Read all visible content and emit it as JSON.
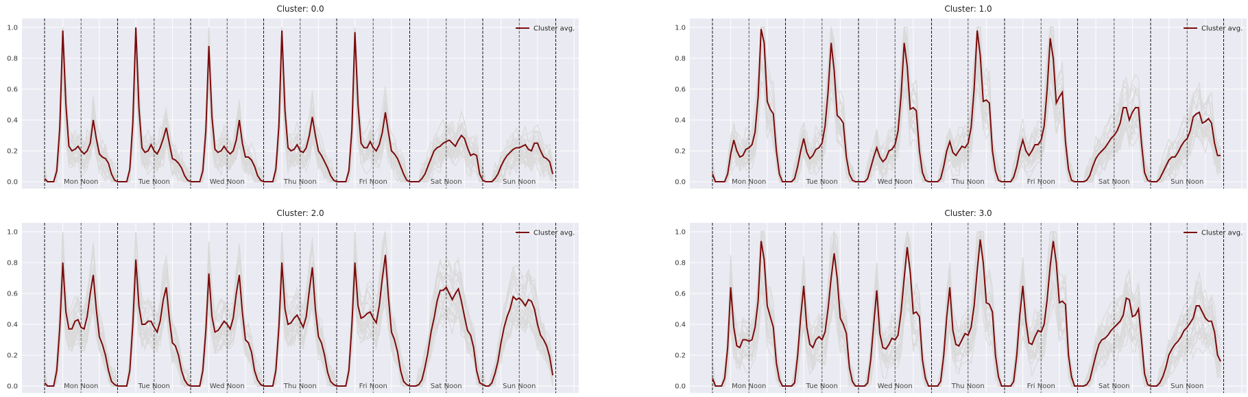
{
  "figure": {
    "grid": true,
    "background_color": "#eaeaf2",
    "avg_color": "#7b0a0a",
    "member_color": "#d9d9d9",
    "legend_placement": "top-right"
  },
  "chart_data": [
    {
      "type": "line",
      "title": "Cluster: 0.0",
      "xlabel": "",
      "ylabel": "",
      "ylim": [
        0,
        1.0
      ],
      "yticks": [
        0.0,
        0.2,
        0.4,
        0.6,
        0.8,
        1.0
      ],
      "ytick_labels": [
        "0.0",
        "0.2",
        "0.4",
        "0.6",
        "0.8",
        "1.0"
      ],
      "day_labels": [
        "Mon Noon",
        "Tue Noon",
        "Wed Noon",
        "Thu Noon",
        "Fri Noon",
        "Sat Noon",
        "Sun Noon"
      ],
      "legend": [
        "Cluster avg."
      ],
      "series": [
        {
          "name": "Cluster avg.",
          "values": [
            0.02,
            0,
            0,
            0,
            0.07,
            0.35,
            0.98,
            0.5,
            0.23,
            0.2,
            0.21,
            0.23,
            0.2,
            0.18,
            0.2,
            0.25,
            0.4,
            0.28,
            0.18,
            0.16,
            0.15,
            0.12,
            0.05,
            0.01,
            0,
            0,
            0,
            0,
            0.08,
            0.38,
            1.0,
            0.48,
            0.22,
            0.19,
            0.2,
            0.24,
            0.2,
            0.18,
            0.22,
            0.28,
            0.35,
            0.25,
            0.15,
            0.14,
            0.12,
            0.09,
            0.04,
            0.01,
            0,
            0,
            0,
            0,
            0.07,
            0.33,
            0.88,
            0.42,
            0.21,
            0.19,
            0.2,
            0.23,
            0.2,
            0.18,
            0.2,
            0.27,
            0.4,
            0.25,
            0.16,
            0.16,
            0.14,
            0.1,
            0.04,
            0.01,
            0,
            0,
            0,
            0,
            0.08,
            0.36,
            0.98,
            0.46,
            0.22,
            0.2,
            0.21,
            0.24,
            0.2,
            0.19,
            0.22,
            0.3,
            0.42,
            0.3,
            0.2,
            0.17,
            0.13,
            0.09,
            0.04,
            0.01,
            0,
            0,
            0,
            0,
            0.07,
            0.34,
            0.97,
            0.5,
            0.25,
            0.22,
            0.22,
            0.26,
            0.22,
            0.2,
            0.24,
            0.32,
            0.45,
            0.32,
            0.2,
            0.18,
            0.15,
            0.1,
            0.05,
            0.01,
            0,
            0,
            0,
            0,
            0.02,
            0.05,
            0.1,
            0.15,
            0.2,
            0.22,
            0.23,
            0.25,
            0.26,
            0.27,
            0.25,
            0.23,
            0.27,
            0.3,
            0.28,
            0.22,
            0.17,
            0.18,
            0.17,
            0.05,
            0.01,
            0,
            0,
            0,
            0.02,
            0.05,
            0.1,
            0.14,
            0.17,
            0.19,
            0.21,
            0.22,
            0.22,
            0.23,
            0.24,
            0.21,
            0.2,
            0.25,
            0.25,
            0.2,
            0.16,
            0.15,
            0.13,
            0.05
          ]
        }
      ]
    },
    {
      "type": "line",
      "title": "Cluster: 1.0",
      "xlabel": "",
      "ylabel": "",
      "ylim": [
        0,
        1.0
      ],
      "yticks": [
        0.0,
        0.2,
        0.4,
        0.6,
        0.8,
        1.0
      ],
      "ytick_labels": [
        "0.0",
        "0.2",
        "0.4",
        "0.6",
        "0.8",
        "1.0"
      ],
      "day_labels": [
        "Mon Noon",
        "Tue Noon",
        "Wed Noon",
        "Thu Noon",
        "Fri Noon",
        "Sat Noon",
        "Sun Noon"
      ],
      "legend": [
        "Cluster avg."
      ],
      "series": [
        {
          "name": "Cluster avg.",
          "values": [
            0.05,
            0,
            0,
            0,
            0,
            0.05,
            0.18,
            0.27,
            0.2,
            0.16,
            0.17,
            0.21,
            0.22,
            0.24,
            0.32,
            0.55,
            0.99,
            0.9,
            0.52,
            0.47,
            0.44,
            0.2,
            0.05,
            0,
            0,
            0,
            0,
            0.02,
            0.1,
            0.2,
            0.28,
            0.19,
            0.15,
            0.17,
            0.21,
            0.22,
            0.25,
            0.36,
            0.58,
            0.9,
            0.72,
            0.43,
            0.41,
            0.38,
            0.16,
            0.05,
            0.01,
            0,
            0,
            0,
            0,
            0.02,
            0.09,
            0.16,
            0.22,
            0.16,
            0.13,
            0.15,
            0.2,
            0.21,
            0.24,
            0.33,
            0.56,
            0.9,
            0.75,
            0.47,
            0.48,
            0.46,
            0.2,
            0.06,
            0.01,
            0,
            0,
            0,
            0,
            0.02,
            0.1,
            0.2,
            0.26,
            0.19,
            0.17,
            0.2,
            0.23,
            0.22,
            0.25,
            0.35,
            0.6,
            0.98,
            0.82,
            0.52,
            0.53,
            0.51,
            0.2,
            0.07,
            0.01,
            0,
            0,
            0,
            0,
            0.03,
            0.1,
            0.2,
            0.27,
            0.2,
            0.17,
            0.2,
            0.24,
            0.24,
            0.27,
            0.36,
            0.6,
            0.93,
            0.8,
            0.51,
            0.55,
            0.58,
            0.26,
            0.08,
            0.01,
            0,
            0,
            0,
            0,
            0.01,
            0.04,
            0.1,
            0.15,
            0.18,
            0.2,
            0.22,
            0.25,
            0.28,
            0.3,
            0.33,
            0.38,
            0.48,
            0.48,
            0.4,
            0.45,
            0.48,
            0.48,
            0.25,
            0.06,
            0.01,
            0,
            0,
            0,
            0.02,
            0.06,
            0.1,
            0.14,
            0.16,
            0.16,
            0.19,
            0.23,
            0.26,
            0.28,
            0.33,
            0.42,
            0.44,
            0.45,
            0.38,
            0.39,
            0.41,
            0.38,
            0.25,
            0.17,
            0.17
          ]
        }
      ]
    },
    {
      "type": "line",
      "title": "Cluster: 2.0",
      "xlabel": "",
      "ylabel": "",
      "ylim": [
        0,
        1.0
      ],
      "yticks": [
        0.0,
        0.2,
        0.4,
        0.6,
        0.8,
        1.0
      ],
      "ytick_labels": [
        "0.0",
        "0.2",
        "0.4",
        "0.6",
        "0.8",
        "1.0"
      ],
      "day_labels": [
        "Mon Noon",
        "Tue Noon",
        "Wed Noon",
        "Thu Noon",
        "Fri Noon",
        "Sat Noon",
        "Sun Noon"
      ],
      "legend": [
        "Cluster avg."
      ],
      "series": [
        {
          "name": "Cluster avg.",
          "values": [
            0.02,
            0,
            0,
            0,
            0.1,
            0.38,
            0.8,
            0.48,
            0.37,
            0.37,
            0.42,
            0.43,
            0.38,
            0.37,
            0.45,
            0.6,
            0.72,
            0.5,
            0.32,
            0.27,
            0.2,
            0.1,
            0.03,
            0.01,
            0,
            0,
            0,
            0,
            0.1,
            0.4,
            0.82,
            0.52,
            0.4,
            0.4,
            0.42,
            0.42,
            0.38,
            0.35,
            0.42,
            0.56,
            0.64,
            0.44,
            0.28,
            0.26,
            0.2,
            0.1,
            0.04,
            0.01,
            0,
            0,
            0,
            0,
            0.1,
            0.36,
            0.73,
            0.45,
            0.35,
            0.36,
            0.39,
            0.42,
            0.4,
            0.37,
            0.44,
            0.6,
            0.72,
            0.48,
            0.3,
            0.28,
            0.22,
            0.1,
            0.04,
            0.01,
            0,
            0,
            0,
            0,
            0.1,
            0.38,
            0.8,
            0.5,
            0.4,
            0.41,
            0.44,
            0.46,
            0.42,
            0.38,
            0.45,
            0.62,
            0.77,
            0.5,
            0.32,
            0.28,
            0.2,
            0.09,
            0.03,
            0.01,
            0,
            0,
            0,
            0,
            0.1,
            0.4,
            0.8,
            0.52,
            0.44,
            0.45,
            0.47,
            0.48,
            0.44,
            0.41,
            0.52,
            0.7,
            0.85,
            0.58,
            0.35,
            0.3,
            0.22,
            0.1,
            0.03,
            0.01,
            0,
            0,
            0,
            0.01,
            0.04,
            0.12,
            0.22,
            0.35,
            0.44,
            0.55,
            0.62,
            0.62,
            0.64,
            0.6,
            0.56,
            0.6,
            0.63,
            0.55,
            0.45,
            0.36,
            0.33,
            0.25,
            0.1,
            0.02,
            0.01,
            0,
            0,
            0.02,
            0.08,
            0.16,
            0.28,
            0.38,
            0.45,
            0.5,
            0.58,
            0.56,
            0.57,
            0.55,
            0.52,
            0.56,
            0.55,
            0.5,
            0.4,
            0.33,
            0.3,
            0.26,
            0.19,
            0.07
          ]
        }
      ]
    },
    {
      "type": "line",
      "title": "Cluster: 3.0",
      "xlabel": "",
      "ylabel": "",
      "ylim": [
        0,
        1.0
      ],
      "yticks": [
        0.0,
        0.2,
        0.4,
        0.6,
        0.8,
        1.0
      ],
      "ytick_labels": [
        "0.0",
        "0.2",
        "0.4",
        "0.6",
        "0.8",
        "1.0"
      ],
      "day_labels": [
        "Mon Noon",
        "Tue Noon",
        "Wed Noon",
        "Thu Noon",
        "Fri Noon",
        "Sat Noon",
        "Sun Noon"
      ],
      "legend": [
        "Cluster avg."
      ],
      "series": [
        {
          "name": "Cluster avg.",
          "values": [
            0.05,
            0,
            0,
            0,
            0.05,
            0.25,
            0.64,
            0.38,
            0.26,
            0.25,
            0.3,
            0.3,
            0.29,
            0.3,
            0.38,
            0.55,
            0.94,
            0.82,
            0.52,
            0.45,
            0.38,
            0.15,
            0.04,
            0,
            0,
            0,
            0,
            0.02,
            0.2,
            0.45,
            0.65,
            0.38,
            0.27,
            0.25,
            0.3,
            0.32,
            0.3,
            0.35,
            0.5,
            0.7,
            0.86,
            0.7,
            0.44,
            0.4,
            0.34,
            0.12,
            0.03,
            0,
            0,
            0,
            0,
            0.02,
            0.17,
            0.4,
            0.62,
            0.34,
            0.25,
            0.24,
            0.27,
            0.31,
            0.3,
            0.33,
            0.48,
            0.7,
            0.9,
            0.74,
            0.47,
            0.48,
            0.45,
            0.17,
            0.05,
            0,
            0,
            0,
            0,
            0.03,
            0.2,
            0.45,
            0.64,
            0.36,
            0.27,
            0.26,
            0.3,
            0.34,
            0.33,
            0.38,
            0.52,
            0.75,
            0.95,
            0.8,
            0.54,
            0.53,
            0.48,
            0.2,
            0.06,
            0,
            0,
            0,
            0,
            0.03,
            0.2,
            0.46,
            0.65,
            0.42,
            0.28,
            0.27,
            0.32,
            0.36,
            0.35,
            0.4,
            0.56,
            0.78,
            0.94,
            0.8,
            0.54,
            0.55,
            0.53,
            0.2,
            0.06,
            0,
            0,
            0,
            0,
            0.01,
            0.04,
            0.12,
            0.2,
            0.27,
            0.3,
            0.31,
            0.33,
            0.36,
            0.38,
            0.4,
            0.42,
            0.46,
            0.57,
            0.56,
            0.45,
            0.46,
            0.5,
            0.3,
            0.08,
            0.01,
            0,
            0,
            0,
            0.02,
            0.06,
            0.12,
            0.2,
            0.24,
            0.27,
            0.29,
            0.32,
            0.36,
            0.38,
            0.41,
            0.44,
            0.52,
            0.52,
            0.48,
            0.44,
            0.42,
            0.42,
            0.35,
            0.2,
            0.16
          ]
        }
      ]
    }
  ]
}
